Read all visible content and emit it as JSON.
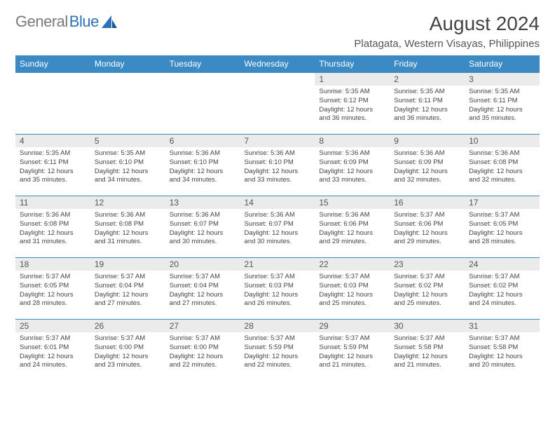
{
  "logo": {
    "part1": "General",
    "part2": "Blue"
  },
  "header": {
    "title": "August 2024",
    "location": "Platagata, Western Visayas, Philippines"
  },
  "colors": {
    "header_bg": "#3b8ac4",
    "header_text": "#ffffff",
    "daynum_bg": "#ebebeb",
    "row_border": "#3b8ac4",
    "logo_gray": "#7a7a7a",
    "logo_blue": "#2d72b8"
  },
  "weekdays": [
    "Sunday",
    "Monday",
    "Tuesday",
    "Wednesday",
    "Thursday",
    "Friday",
    "Saturday"
  ],
  "weeks": [
    [
      null,
      null,
      null,
      null,
      {
        "n": "1",
        "lines": [
          "Sunrise: 5:35 AM",
          "Sunset: 6:12 PM",
          "Daylight: 12 hours",
          "and 36 minutes."
        ]
      },
      {
        "n": "2",
        "lines": [
          "Sunrise: 5:35 AM",
          "Sunset: 6:11 PM",
          "Daylight: 12 hours",
          "and 36 minutes."
        ]
      },
      {
        "n": "3",
        "lines": [
          "Sunrise: 5:35 AM",
          "Sunset: 6:11 PM",
          "Daylight: 12 hours",
          "and 35 minutes."
        ]
      }
    ],
    [
      {
        "n": "4",
        "lines": [
          "Sunrise: 5:35 AM",
          "Sunset: 6:11 PM",
          "Daylight: 12 hours",
          "and 35 minutes."
        ]
      },
      {
        "n": "5",
        "lines": [
          "Sunrise: 5:35 AM",
          "Sunset: 6:10 PM",
          "Daylight: 12 hours",
          "and 34 minutes."
        ]
      },
      {
        "n": "6",
        "lines": [
          "Sunrise: 5:36 AM",
          "Sunset: 6:10 PM",
          "Daylight: 12 hours",
          "and 34 minutes."
        ]
      },
      {
        "n": "7",
        "lines": [
          "Sunrise: 5:36 AM",
          "Sunset: 6:10 PM",
          "Daylight: 12 hours",
          "and 33 minutes."
        ]
      },
      {
        "n": "8",
        "lines": [
          "Sunrise: 5:36 AM",
          "Sunset: 6:09 PM",
          "Daylight: 12 hours",
          "and 33 minutes."
        ]
      },
      {
        "n": "9",
        "lines": [
          "Sunrise: 5:36 AM",
          "Sunset: 6:09 PM",
          "Daylight: 12 hours",
          "and 32 minutes."
        ]
      },
      {
        "n": "10",
        "lines": [
          "Sunrise: 5:36 AM",
          "Sunset: 6:08 PM",
          "Daylight: 12 hours",
          "and 32 minutes."
        ]
      }
    ],
    [
      {
        "n": "11",
        "lines": [
          "Sunrise: 5:36 AM",
          "Sunset: 6:08 PM",
          "Daylight: 12 hours",
          "and 31 minutes."
        ]
      },
      {
        "n": "12",
        "lines": [
          "Sunrise: 5:36 AM",
          "Sunset: 6:08 PM",
          "Daylight: 12 hours",
          "and 31 minutes."
        ]
      },
      {
        "n": "13",
        "lines": [
          "Sunrise: 5:36 AM",
          "Sunset: 6:07 PM",
          "Daylight: 12 hours",
          "and 30 minutes."
        ]
      },
      {
        "n": "14",
        "lines": [
          "Sunrise: 5:36 AM",
          "Sunset: 6:07 PM",
          "Daylight: 12 hours",
          "and 30 minutes."
        ]
      },
      {
        "n": "15",
        "lines": [
          "Sunrise: 5:36 AM",
          "Sunset: 6:06 PM",
          "Daylight: 12 hours",
          "and 29 minutes."
        ]
      },
      {
        "n": "16",
        "lines": [
          "Sunrise: 5:37 AM",
          "Sunset: 6:06 PM",
          "Daylight: 12 hours",
          "and 29 minutes."
        ]
      },
      {
        "n": "17",
        "lines": [
          "Sunrise: 5:37 AM",
          "Sunset: 6:05 PM",
          "Daylight: 12 hours",
          "and 28 minutes."
        ]
      }
    ],
    [
      {
        "n": "18",
        "lines": [
          "Sunrise: 5:37 AM",
          "Sunset: 6:05 PM",
          "Daylight: 12 hours",
          "and 28 minutes."
        ]
      },
      {
        "n": "19",
        "lines": [
          "Sunrise: 5:37 AM",
          "Sunset: 6:04 PM",
          "Daylight: 12 hours",
          "and 27 minutes."
        ]
      },
      {
        "n": "20",
        "lines": [
          "Sunrise: 5:37 AM",
          "Sunset: 6:04 PM",
          "Daylight: 12 hours",
          "and 27 minutes."
        ]
      },
      {
        "n": "21",
        "lines": [
          "Sunrise: 5:37 AM",
          "Sunset: 6:03 PM",
          "Daylight: 12 hours",
          "and 26 minutes."
        ]
      },
      {
        "n": "22",
        "lines": [
          "Sunrise: 5:37 AM",
          "Sunset: 6:03 PM",
          "Daylight: 12 hours",
          "and 25 minutes."
        ]
      },
      {
        "n": "23",
        "lines": [
          "Sunrise: 5:37 AM",
          "Sunset: 6:02 PM",
          "Daylight: 12 hours",
          "and 25 minutes."
        ]
      },
      {
        "n": "24",
        "lines": [
          "Sunrise: 5:37 AM",
          "Sunset: 6:02 PM",
          "Daylight: 12 hours",
          "and 24 minutes."
        ]
      }
    ],
    [
      {
        "n": "25",
        "lines": [
          "Sunrise: 5:37 AM",
          "Sunset: 6:01 PM",
          "Daylight: 12 hours",
          "and 24 minutes."
        ]
      },
      {
        "n": "26",
        "lines": [
          "Sunrise: 5:37 AM",
          "Sunset: 6:00 PM",
          "Daylight: 12 hours",
          "and 23 minutes."
        ]
      },
      {
        "n": "27",
        "lines": [
          "Sunrise: 5:37 AM",
          "Sunset: 6:00 PM",
          "Daylight: 12 hours",
          "and 22 minutes."
        ]
      },
      {
        "n": "28",
        "lines": [
          "Sunrise: 5:37 AM",
          "Sunset: 5:59 PM",
          "Daylight: 12 hours",
          "and 22 minutes."
        ]
      },
      {
        "n": "29",
        "lines": [
          "Sunrise: 5:37 AM",
          "Sunset: 5:59 PM",
          "Daylight: 12 hours",
          "and 21 minutes."
        ]
      },
      {
        "n": "30",
        "lines": [
          "Sunrise: 5:37 AM",
          "Sunset: 5:58 PM",
          "Daylight: 12 hours",
          "and 21 minutes."
        ]
      },
      {
        "n": "31",
        "lines": [
          "Sunrise: 5:37 AM",
          "Sunset: 5:58 PM",
          "Daylight: 12 hours",
          "and 20 minutes."
        ]
      }
    ]
  ]
}
